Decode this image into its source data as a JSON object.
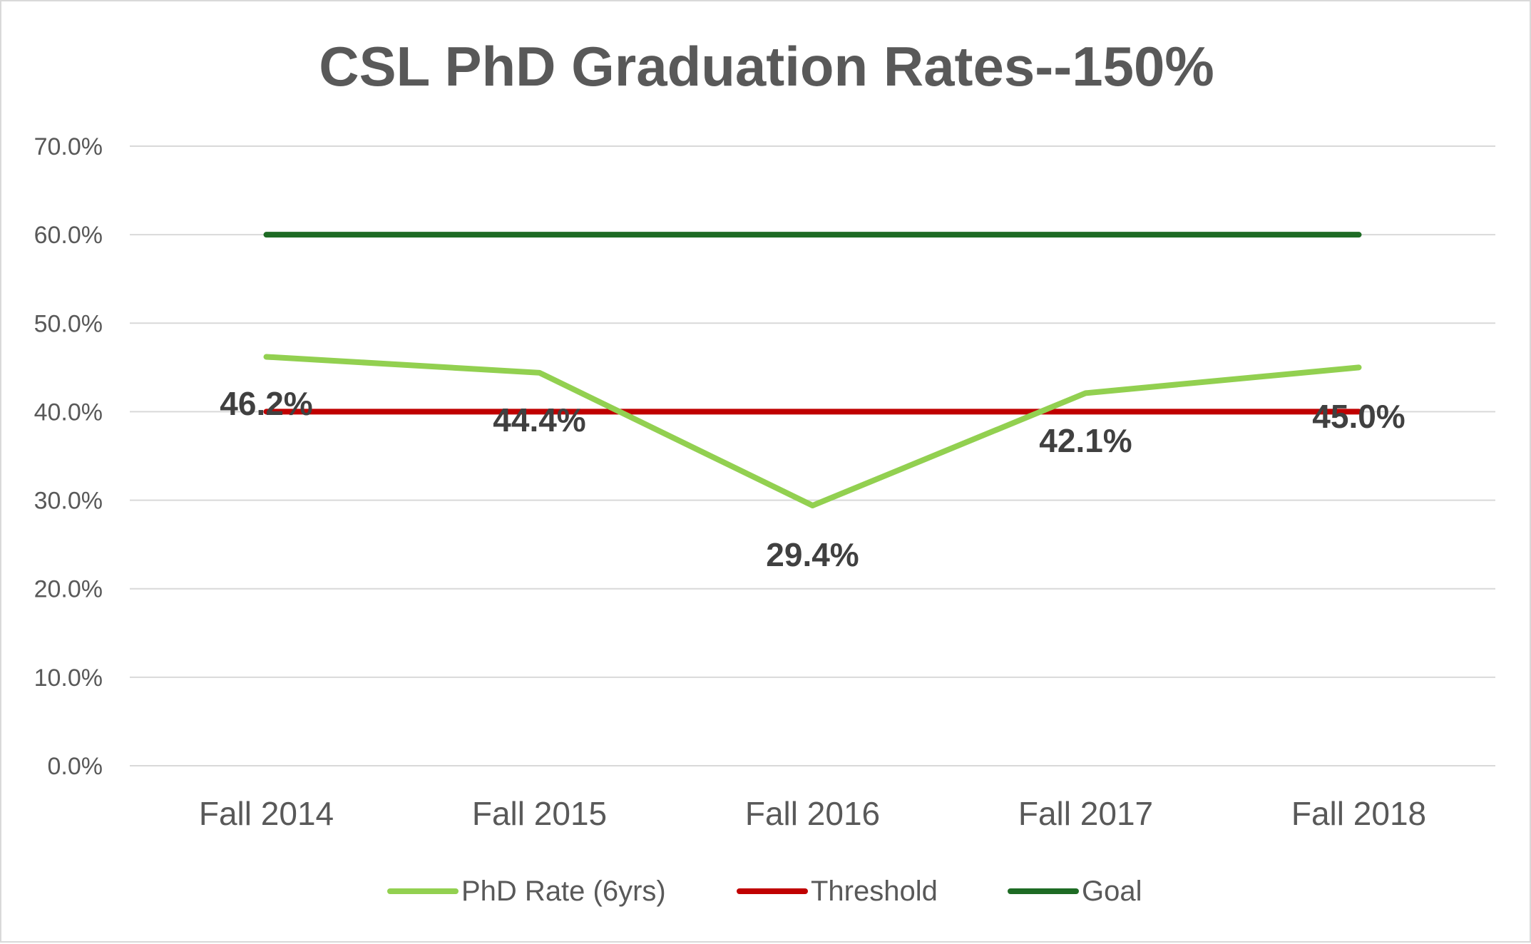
{
  "chart_data": {
    "type": "line",
    "title": "CSL PhD Graduation Rates--150%",
    "categories": [
      "Fall 2014",
      "Fall 2015",
      "Fall 2016",
      "Fall 2017",
      "Fall 2018"
    ],
    "y_ticks": [
      "0.0%",
      "10.0%",
      "20.0%",
      "30.0%",
      "40.0%",
      "50.0%",
      "60.0%",
      "70.0%"
    ],
    "ylim": [
      0,
      70
    ],
    "grid": true,
    "legend_position": "bottom",
    "series": [
      {
        "name": "PhD Rate (6yrs)",
        "values": [
          46.2,
          44.4,
          29.4,
          42.1,
          45.0
        ],
        "data_labels": [
          "46.2%",
          "44.4%",
          "29.4%",
          "42.1%",
          "45.0%"
        ],
        "color": "#92d050"
      },
      {
        "name": "Threshold",
        "values": [
          40,
          40,
          40,
          40,
          40
        ],
        "color": "#c00000"
      },
      {
        "name": "Goal",
        "values": [
          60,
          60,
          60,
          60,
          60
        ],
        "color": "#1e6b24"
      }
    ]
  }
}
